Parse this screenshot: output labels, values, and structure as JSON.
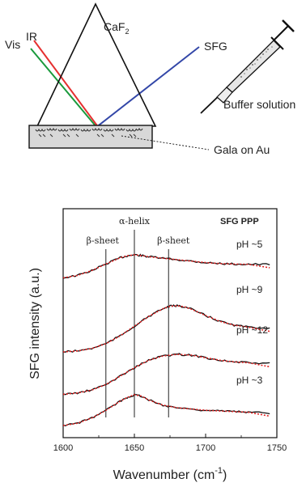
{
  "diagram": {
    "prism_label_main": "CaF",
    "prism_label_sub": "2",
    "beam_vis": "Vis",
    "beam_ir": "IR",
    "beam_sfg": "SFG",
    "syringe_label": "Buffer solution",
    "sample_label": "Gala on Au",
    "colors": {
      "vis": "#1a9a3c",
      "ir": "#e53030",
      "sfg": "#3347a8",
      "prism": "#111111",
      "substrate": "#d8d8d8"
    }
  },
  "chart_data": {
    "type": "line",
    "title": "SFG  PPP",
    "xlabel": "Wavenumber (cm",
    "xlabel_sup": "-1",
    "xlabel_close": ")",
    "ylabel": "SFG intensity (a.u.)",
    "xlim": [
      1600,
      1750
    ],
    "xticks": [
      "1600",
      "1650",
      "1700",
      "1750"
    ],
    "markers": [
      {
        "x": 1630,
        "label": "β-sheet"
      },
      {
        "x": 1650,
        "label": "α-helix"
      },
      {
        "x": 1674,
        "label": "β-sheet"
      }
    ],
    "series": [
      {
        "name": "pH ~5",
        "offset": 0,
        "peak": 1650,
        "amp": 1.0,
        "tail": -0.15,
        "x": [
          1600,
          1610,
          1620,
          1630,
          1640,
          1645,
          1650,
          1655,
          1660,
          1670,
          1680,
          1690,
          1700,
          1710,
          1720,
          1730,
          1745
        ],
        "y": [
          0.05,
          0.15,
          0.35,
          0.62,
          0.88,
          0.96,
          1.0,
          0.97,
          0.92,
          0.86,
          0.8,
          0.74,
          0.68,
          0.64,
          0.62,
          0.61,
          0.6
        ]
      },
      {
        "name": "pH ~9",
        "offset": 0,
        "peak": 1680,
        "amp": 1.0,
        "x": [
          1600,
          1610,
          1620,
          1630,
          1640,
          1650,
          1660,
          1670,
          1675,
          1680,
          1685,
          1690,
          1700,
          1710,
          1720,
          1730,
          1745
        ],
        "y": [
          0.05,
          0.07,
          0.12,
          0.22,
          0.38,
          0.58,
          0.78,
          0.94,
          0.99,
          1.0,
          0.98,
          0.93,
          0.8,
          0.68,
          0.6,
          0.56,
          0.54
        ]
      },
      {
        "name": "pH ~12",
        "offset": 0,
        "peak": 1680,
        "amp": 1.0,
        "x": [
          1600,
          1610,
          1620,
          1630,
          1640,
          1650,
          1660,
          1670,
          1680,
          1690,
          1700,
          1710,
          1720,
          1730,
          1745
        ],
        "y": [
          0.05,
          0.08,
          0.15,
          0.28,
          0.48,
          0.68,
          0.86,
          0.96,
          1.0,
          0.98,
          0.92,
          0.86,
          0.82,
          0.8,
          0.78
        ]
      },
      {
        "name": "pH ~3",
        "offset": 0,
        "peak": 1650,
        "amp": 1.0,
        "x": [
          1600,
          1610,
          1620,
          1630,
          1640,
          1645,
          1650,
          1655,
          1660,
          1670,
          1680,
          1690,
          1700,
          1710,
          1720,
          1730,
          1745
        ],
        "y": [
          0.05,
          0.12,
          0.28,
          0.52,
          0.8,
          0.92,
          1.0,
          0.96,
          0.84,
          0.68,
          0.6,
          0.56,
          0.52,
          0.5,
          0.48,
          0.46,
          0.44
        ]
      }
    ]
  }
}
